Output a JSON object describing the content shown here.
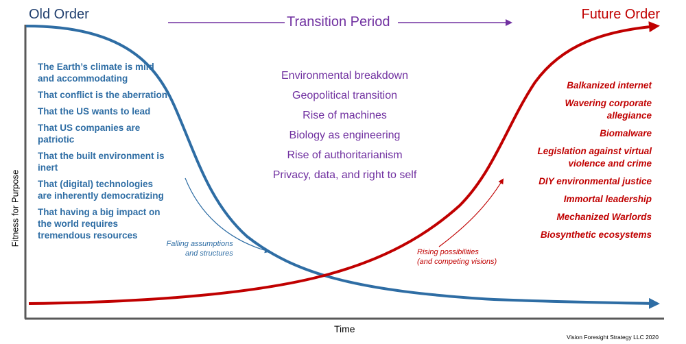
{
  "header": {
    "old_order": "Old Order",
    "transition_period": "Transition Period",
    "future_order": "Future Order"
  },
  "old_assumptions": [
    "The Earth’s climate is mild and accommodating",
    "That conflict is the aberration",
    "That the US wants to lead",
    "That US companies are patriotic",
    "That the built environment is inert",
    "That (digital) technologies are inherently democratizing",
    "That having a big impact on the world requires tremendous resources"
  ],
  "transitions": [
    "Environmental breakdown",
    "Geopolitical transition",
    "Rise of machines",
    "Biology as engineering",
    "Rise of authoritarianism",
    "Privacy, data, and right to self"
  ],
  "future_possibilities": [
    "Balkanized internet",
    "Wavering corporate allegiance",
    "Biomalware",
    "Legislation against virtual violence and crime",
    "DIY environmental justice",
    "Immortal leadership",
    "Mechanized Warlords",
    "Biosynthetic ecosystems"
  ],
  "annotations": {
    "falling_line1": "Falling assumptions",
    "falling_line2": "and structures",
    "rising_line1": "Rising possibilities",
    "rising_line2": "(and competing visions)"
  },
  "axes": {
    "y_label": "Fitness for Purpose",
    "x_label": "Time"
  },
  "credit": "Vision Foresight Strategy LLC 2020",
  "colors": {
    "old_curve": "#2e6da4",
    "future_curve": "#c00000",
    "transition": "#7030a0",
    "axis": "#595959"
  }
}
